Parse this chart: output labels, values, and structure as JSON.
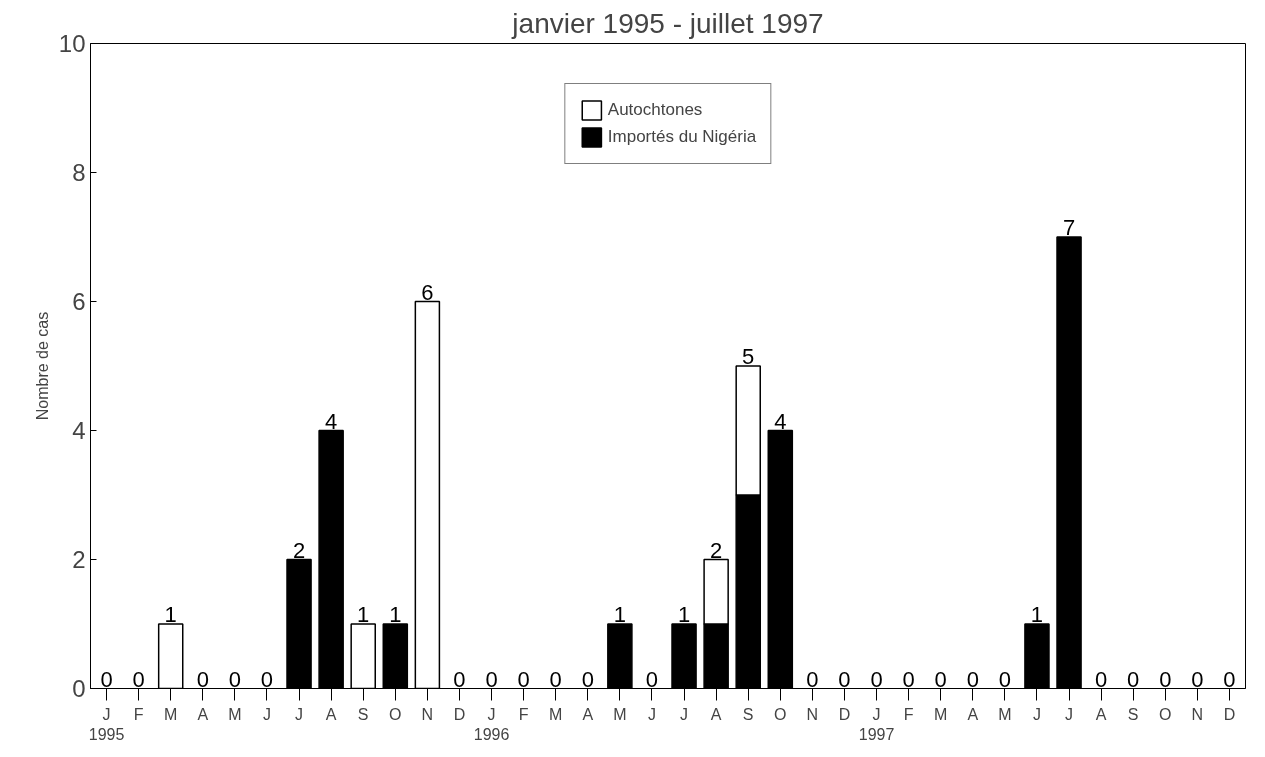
{
  "chart_data": {
    "type": "bar",
    "title": "janvier 1995 - juillet 1997",
    "ylabel": "Nombre de cas",
    "categories": [
      "J\n1995",
      "F",
      "M",
      "A",
      "M",
      "J",
      "J",
      "A",
      "S",
      "O",
      "N",
      "D",
      "J\n1996",
      "F",
      "M",
      "A",
      "M",
      "J",
      "J",
      "A",
      "S",
      "O",
      "N",
      "D",
      "J\n1997",
      "F",
      "M",
      "A",
      "M",
      "J",
      "J",
      "A",
      "S",
      "O",
      "N",
      "D"
    ],
    "stacked": true,
    "series": [
      {
        "name": "Importés du Nigéria",
        "color": "#000000",
        "values": [
          0,
          0,
          0,
          0,
          0,
          0,
          2,
          4,
          0,
          1,
          0,
          0,
          0,
          0,
          0,
          0,
          1,
          0,
          1,
          1,
          3,
          4,
          0,
          0,
          0,
          0,
          0,
          0,
          0,
          1,
          7,
          0,
          0,
          0,
          0,
          0
        ]
      },
      {
        "name": "Autochtones",
        "color": "#ffffff",
        "values": [
          0,
          0,
          1,
          0,
          0,
          0,
          0,
          0,
          1,
          0,
          6,
          0,
          0,
          0,
          0,
          0,
          0,
          0,
          0,
          1,
          2,
          0,
          0,
          0,
          0,
          0,
          0,
          0,
          0,
          0,
          0,
          0,
          0,
          0,
          0,
          0
        ]
      }
    ],
    "totals": [
      "0",
      "0",
      "1",
      "0",
      "0",
      "0",
      "2",
      "4",
      "1",
      "1",
      "6",
      "0",
      "0",
      "0",
      "0",
      "0",
      "1",
      "0",
      "1",
      "2",
      "5",
      "4",
      "0",
      "0",
      "0",
      "0",
      "0",
      "0",
      "0",
      "1",
      "7",
      "0",
      "0",
      "0",
      "0",
      "0"
    ],
    "ylim": [
      0,
      10
    ],
    "yticks": [
      0,
      2,
      4,
      6,
      8,
      10
    ],
    "grid": false,
    "legend": "top"
  }
}
